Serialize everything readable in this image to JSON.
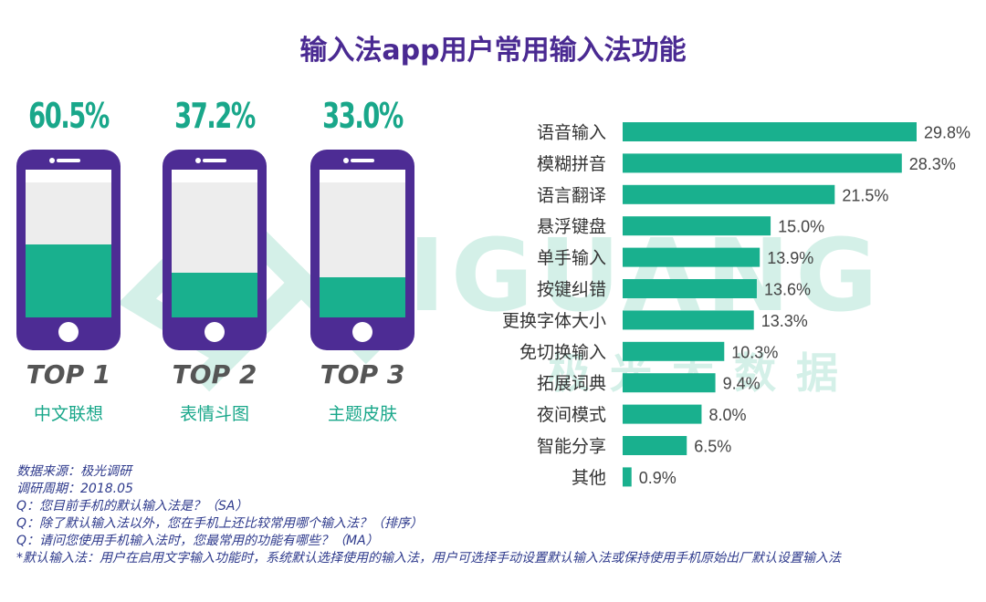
{
  "title": "输入法app用户常用输入法功能",
  "watermark": {
    "text": "JIGUANG",
    "cn": "极光大数据",
    "color": "#c9ece2"
  },
  "colors": {
    "accent": "#19b08e",
    "title": "#4a2a92",
    "phone": "#4d2c94",
    "label": "#333333",
    "note": "#2e3a8c"
  },
  "top3": [
    {
      "pct": "60.5%",
      "value": 60.5,
      "rank": "TOP 1",
      "feature": "中文联想"
    },
    {
      "pct": "37.2%",
      "value": 37.2,
      "rank": "TOP 2",
      "feature": "表情斗图"
    },
    {
      "pct": "33.0%",
      "value": 33.0,
      "rank": "TOP 3",
      "feature": "主题皮肤"
    }
  ],
  "notes": [
    "数据来源：极光调研",
    "调研周期：2018.05",
    "Q：您目前手机的默认输入法是？（SA）",
    "Q：除了默认输入法以外，您在手机上还比较常用哪个输入法？（排序）",
    "Q：请问您使用手机输入法时，您最常用的功能有哪些？（MA）",
    "*默认输入法：用户在启用文字输入功能时，系统默认选择使用的输入法，用户可选择手动设置默认输入法或保持使用手机原始出厂默认设置输入法"
  ],
  "chart_data": {
    "type": "bar",
    "orientation": "horizontal",
    "categories": [
      "语音输入",
      "模糊拼音",
      "语言翻译",
      "悬浮键盘",
      "单手输入",
      "按键纠错",
      "更换字体大小",
      "免切换输入",
      "拓展词典",
      "夜间模式",
      "智能分享",
      "其他"
    ],
    "values": [
      29.8,
      28.3,
      21.5,
      15.0,
      13.9,
      13.6,
      13.3,
      10.3,
      9.4,
      8.0,
      6.5,
      0.9
    ],
    "labels": [
      "29.8%",
      "28.3%",
      "21.5%",
      "15.0%",
      "13.9%",
      "13.6%",
      "13.3%",
      "10.3%",
      "9.4%",
      "8.0%",
      "6.5%",
      "0.9%"
    ],
    "grid": false,
    "legend": "none"
  }
}
